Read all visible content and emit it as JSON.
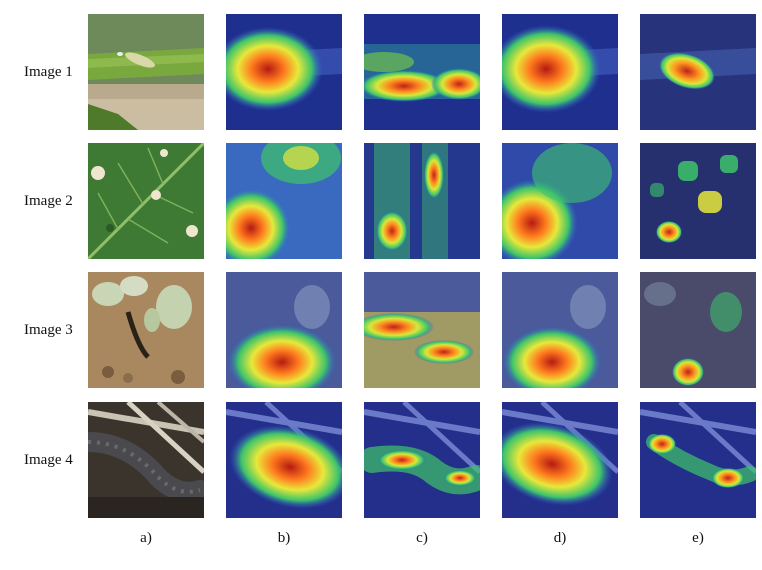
{
  "rows": [
    {
      "label": "Image 1",
      "scene": "leaf-caterpillar"
    },
    {
      "label": "Image 2",
      "scene": "holed-leaf"
    },
    {
      "label": "Image 3",
      "scene": "seedlings-soil"
    },
    {
      "label": "Image 4",
      "scene": "cutworm-debris"
    }
  ],
  "columns": [
    {
      "label": "a)",
      "content": "original photo"
    },
    {
      "label": "b)",
      "content": "heatmap"
    },
    {
      "label": "c)",
      "content": "heatmap"
    },
    {
      "label": "d)",
      "content": "heatmap"
    },
    {
      "label": "e)",
      "content": "heatmap"
    }
  ],
  "colors": {
    "hot": "#c0201a",
    "warm": "#ffd23c",
    "mid": "#37c46a",
    "cool": "#2f5bd6",
    "base": "#1d2e8c"
  }
}
